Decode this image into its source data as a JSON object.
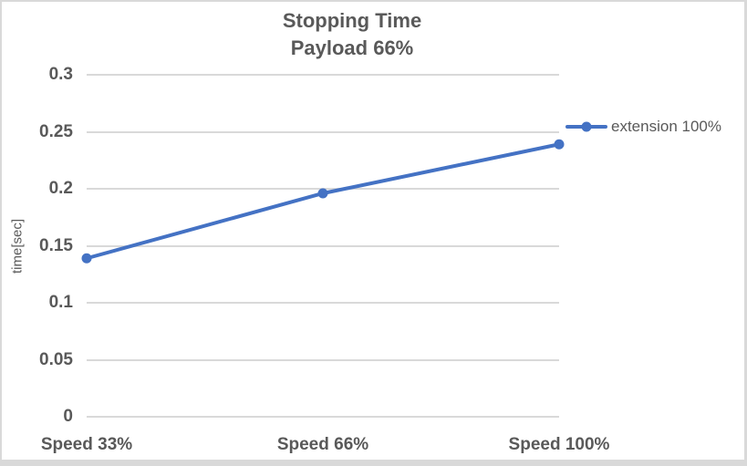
{
  "chart_data": {
    "type": "line",
    "title": "Stopping Time",
    "subtitle": "Payload 66%",
    "categories": [
      "Speed 33%",
      "Speed 66%",
      "Speed 100%"
    ],
    "series": [
      {
        "name": "extension 100%",
        "values": [
          0.139,
          0.196,
          0.239
        ]
      }
    ],
    "xlabel": "",
    "ylabel": "time[sec]",
    "ylim": [
      0,
      0.3
    ],
    "ytick_labels": [
      "0",
      "0.05",
      "0.1",
      "0.15",
      "0.2",
      "0.25",
      "0.3"
    ],
    "grid": "horizontal-only",
    "legend_position": "right-of-plot",
    "marker": "circle",
    "colors": {
      "series_line": "#4472C4",
      "text": "#595959",
      "gridline": "#D9D9D9",
      "chart_border": "#D9D9D9",
      "background": "#FFFFFF"
    }
  }
}
